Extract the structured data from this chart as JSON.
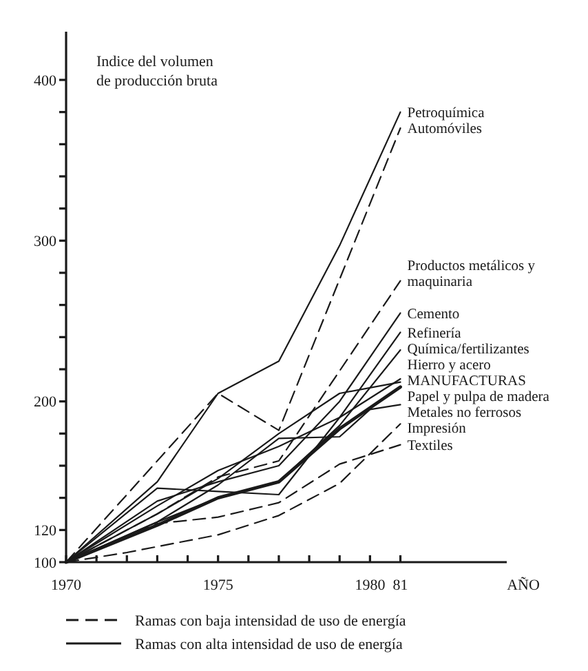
{
  "chart_data": {
    "type": "line",
    "ylabel": "Indice del volumen de producción bruta",
    "xlabel": "AÑO",
    "xlim": [
      1970,
      1984.5
    ],
    "ylim": [
      100,
      430
    ],
    "xticks": [
      1970,
      {
        "value": 1971,
        "label": null
      },
      {
        "value": 1972,
        "label": null
      },
      {
        "value": 1973,
        "label": null
      },
      {
        "value": 1974,
        "label": null
      },
      1975,
      {
        "value": 1976,
        "label": null
      },
      {
        "value": 1977,
        "label": null
      },
      {
        "value": 1978,
        "label": null
      },
      {
        "value": 1979,
        "label": null
      },
      1980,
      {
        "value": 1981,
        "label": "81"
      }
    ],
    "yticks": [
      100,
      120,
      {
        "value": 140,
        "label": null
      },
      {
        "value": 160,
        "label": null
      },
      {
        "value": 180,
        "label": null
      },
      200,
      {
        "value": 220,
        "label": null
      },
      {
        "value": 240,
        "label": null
      },
      {
        "value": 260,
        "label": null
      },
      {
        "value": 280,
        "label": null
      },
      300,
      {
        "value": 320,
        "label": null
      },
      {
        "value": 340,
        "label": null
      },
      {
        "value": 360,
        "label": null
      },
      {
        "value": 380,
        "label": null
      },
      400
    ],
    "grid": false,
    "marker": "none",
    "series": [
      {
        "name": "Petroquímica",
        "color": "#1a1a1a",
        "line_style": "solid",
        "x": [
          1970,
          1973,
          1975,
          1977,
          1979,
          1981
        ],
        "values": [
          100,
          150,
          205,
          225,
          297,
          380
        ]
      },
      {
        "name": "Automóviles",
        "color": "#1a1a1a",
        "line_style": "dashed",
        "x": [
          1970,
          1975,
          1977,
          1979,
          1981
        ],
        "values": [
          100,
          205,
          182,
          276,
          370
        ]
      },
      {
        "name": "Productos metálicos y maquinaria",
        "color": "#1a1a1a",
        "line_style": "dashed",
        "x": [
          1970,
          1973,
          1975,
          1977,
          1979,
          1981
        ],
        "values": [
          100,
          130,
          153,
          163,
          219,
          275
        ]
      },
      {
        "name": "Cemento",
        "color": "#1a1a1a",
        "line_style": "solid",
        "x": [
          1970,
          1973,
          1975,
          1977,
          1979,
          1981
        ],
        "values": [
          100,
          138,
          150,
          160,
          200,
          255
        ]
      },
      {
        "name": "Refinería",
        "color": "#1a1a1a",
        "line_style": "solid",
        "x": [
          1970,
          1973,
          1975,
          1977,
          1979,
          1981
        ],
        "values": [
          100,
          135,
          157,
          172,
          190,
          243
        ]
      },
      {
        "name": "Química/fertilizantes",
        "color": "#1a1a1a",
        "line_style": "solid",
        "x": [
          1970,
          1973,
          1975,
          1977,
          1979,
          1981
        ],
        "values": [
          100,
          125,
          140,
          150,
          185,
          232
        ]
      },
      {
        "name": "Hierro y acero",
        "color": "#1a1a1a",
        "line_style": "solid",
        "x": [
          1970,
          1973,
          1975,
          1977,
          1979,
          1981
        ],
        "values": [
          100,
          146,
          144,
          142,
          190,
          214
        ]
      },
      {
        "name": "MANUFACTURAS",
        "color": "#1a1a1a",
        "line_style": "solid",
        "x": [
          1970,
          1973,
          1975,
          1977,
          1979,
          1981
        ],
        "values": [
          100,
          123,
          140,
          150,
          183,
          209
        ]
      },
      {
        "name": "Papel y pulpa de madera",
        "color": "#1a1a1a",
        "line_style": "solid",
        "x": [
          1970,
          1973,
          1975,
          1977,
          1979,
          1981
        ],
        "values": [
          100,
          130,
          152,
          180,
          205,
          212
        ]
      },
      {
        "name": "Metales no ferrosos",
        "color": "#1a1a1a",
        "line_style": "solid",
        "x": [
          1970,
          1973,
          1975,
          1977,
          1979,
          1980,
          1981
        ],
        "values": [
          100,
          125,
          148,
          177,
          178,
          195,
          198
        ]
      },
      {
        "name": "Impresión",
        "color": "#1a1a1a",
        "line_style": "dashed",
        "x": [
          1970,
          1972,
          1975,
          1977,
          1979,
          1981
        ],
        "values": [
          100,
          106,
          117,
          129,
          149,
          186
        ]
      },
      {
        "name": "Textiles",
        "color": "#1a1a1a",
        "line_style": "dashed",
        "x": [
          1970,
          1973,
          1975,
          1977,
          1979,
          1981
        ],
        "values": [
          100,
          124,
          128,
          137,
          161,
          173
        ]
      }
    ],
    "annotations": [
      "Ramas con baja intensidad de uso de energía",
      "Ramas con alta intensidad de uso de energía"
    ]
  }
}
